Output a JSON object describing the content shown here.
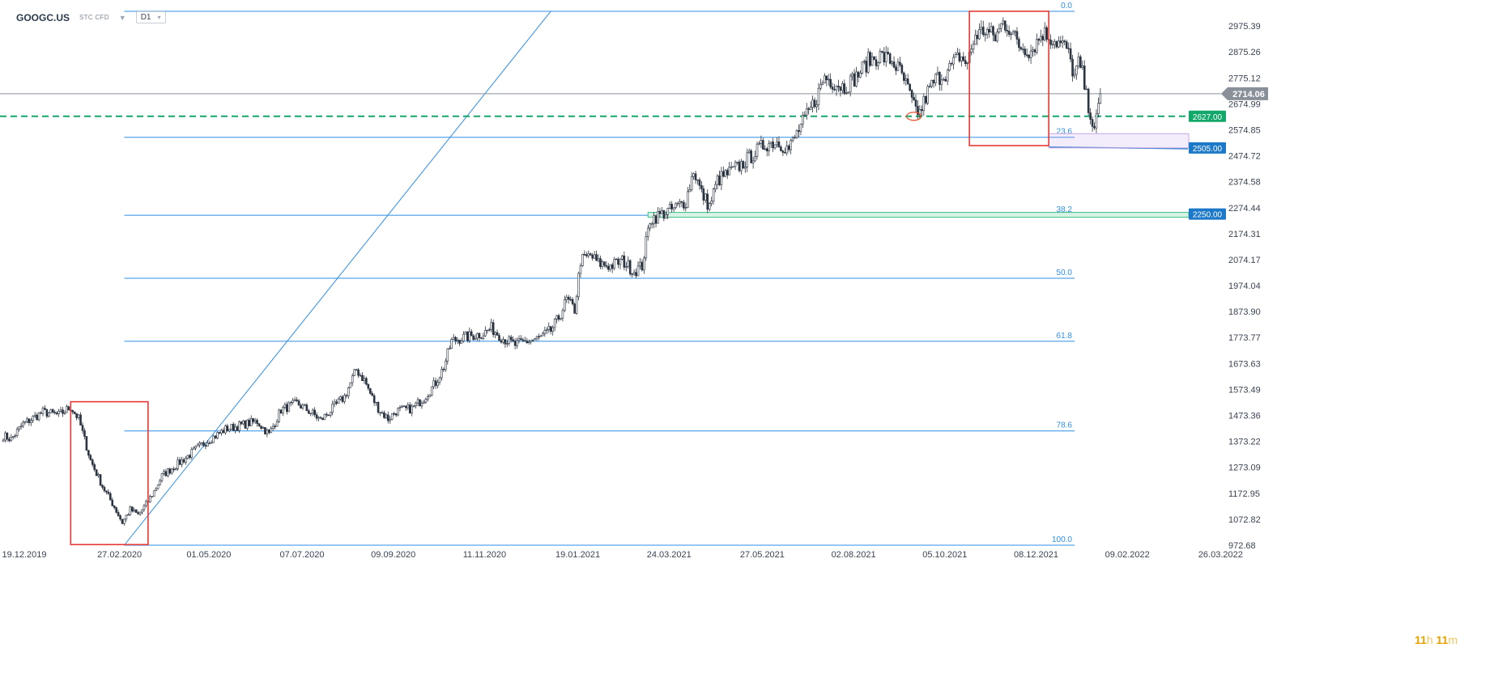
{
  "header": {
    "symbol": "GOOGC.US",
    "instrument_type": "STC CFD",
    "dropdown_icon": "chevron-down-icon",
    "timeframe": "D1"
  },
  "timer": {
    "hours": "11",
    "h": "h",
    "minutes": "11",
    "m": "m"
  },
  "chart_data": {
    "type": "candlestick",
    "symbol": "GOOGC.US",
    "timeframe": "D1",
    "ylim": [
      972.68,
      3075.5
    ],
    "y_ticks": [
      972.68,
      1072.82,
      1172.95,
      1273.09,
      1373.22,
      1473.36,
      1573.49,
      1673.63,
      1773.77,
      1873.9,
      1974.04,
      2074.17,
      2174.31,
      2274.44,
      2374.58,
      2474.72,
      2574.85,
      2674.99,
      2775.12,
      2875.26,
      2975.39
    ],
    "y_tick_labels": [
      "972.68",
      "1072.82",
      "1172.95",
      "1273.09",
      "1373.22",
      "1473.36",
      "1573.49",
      "1673.63",
      "1773.77",
      "1873.90",
      "1974.04",
      "2074.17",
      "2174.31",
      "2274.44",
      "2374.58",
      "2474.72",
      "2574.85",
      "2674.99",
      "2775.12",
      "2875.26",
      "2975.39"
    ],
    "x_tick_labels": [
      "19.12.2019",
      "27.02.2020",
      "01.05.2020",
      "07.07.2020",
      "09.09.2020",
      "11.11.2020",
      "19.01.2021",
      "24.03.2021",
      "27.05.2021",
      "02.08.2021",
      "05.10.2021",
      "08.12.2021",
      "09.02.2022",
      "26.03.2022"
    ],
    "x_tick_index": [
      0,
      48,
      93,
      140,
      186,
      232,
      279,
      325,
      372,
      418,
      464,
      510,
      556,
      603
    ],
    "last_index": 553,
    "current_price": 2714.06,
    "current_price_label": "2714.06",
    "anchors": [
      [
        0,
        1395
      ],
      [
        4,
        1382
      ],
      [
        10,
        1440
      ],
      [
        20,
        1486
      ],
      [
        28,
        1475
      ],
      [
        34,
        1505
      ],
      [
        38,
        1460
      ],
      [
        44,
        1300
      ],
      [
        50,
        1200
      ],
      [
        56,
        1120
      ],
      [
        60,
        1060
      ],
      [
        64,
        1110
      ],
      [
        68,
        1090
      ],
      [
        72,
        1130
      ],
      [
        76,
        1180
      ],
      [
        80,
        1240
      ],
      [
        86,
        1275
      ],
      [
        92,
        1310
      ],
      [
        100,
        1360
      ],
      [
        106,
        1390
      ],
      [
        112,
        1420
      ],
      [
        122,
        1440
      ],
      [
        128,
        1450
      ],
      [
        134,
        1400
      ],
      [
        140,
        1495
      ],
      [
        148,
        1520
      ],
      [
        156,
        1480
      ],
      [
        160,
        1455
      ],
      [
        166,
        1500
      ],
      [
        172,
        1545
      ],
      [
        178,
        1650
      ],
      [
        182,
        1610
      ],
      [
        186,
        1540
      ],
      [
        190,
        1490
      ],
      [
        194,
        1460
      ],
      [
        198,
        1490
      ],
      [
        206,
        1500
      ],
      [
        212,
        1540
      ],
      [
        218,
        1600
      ],
      [
        222,
        1660
      ],
      [
        226,
        1760
      ],
      [
        230,
        1770
      ],
      [
        236,
        1780
      ],
      [
        242,
        1790
      ],
      [
        246,
        1810
      ],
      [
        252,
        1770
      ],
      [
        258,
        1745
      ],
      [
        264,
        1760
      ],
      [
        270,
        1770
      ],
      [
        276,
        1800
      ],
      [
        280,
        1850
      ],
      [
        284,
        1920
      ],
      [
        288,
        1880
      ],
      [
        291,
        2070
      ],
      [
        296,
        2090
      ],
      [
        300,
        2060
      ],
      [
        306,
        2050
      ],
      [
        312,
        2070
      ],
      [
        318,
        2030
      ],
      [
        322,
        2050
      ],
      [
        326,
        2230
      ],
      [
        332,
        2250
      ],
      [
        338,
        2270
      ],
      [
        344,
        2300
      ],
      [
        348,
        2420
      ],
      [
        352,
        2330
      ],
      [
        356,
        2280
      ],
      [
        360,
        2380
      ],
      [
        366,
        2410
      ],
      [
        372,
        2440
      ],
      [
        378,
        2480
      ],
      [
        384,
        2520
      ],
      [
        390,
        2530
      ],
      [
        396,
        2500
      ],
      [
        402,
        2590
      ],
      [
        406,
        2640
      ],
      [
        410,
        2700
      ],
      [
        414,
        2780
      ],
      [
        418,
        2760
      ],
      [
        424,
        2740
      ],
      [
        430,
        2780
      ],
      [
        436,
        2840
      ],
      [
        442,
        2860
      ],
      [
        448,
        2840
      ],
      [
        452,
        2800
      ],
      [
        456,
        2730
      ],
      [
        459,
        2660
      ],
      [
        462,
        2640
      ],
      [
        466,
        2720
      ],
      [
        470,
        2770
      ],
      [
        476,
        2800
      ],
      [
        482,
        2860
      ],
      [
        486,
        2830
      ],
      [
        490,
        2940
      ],
      [
        495,
        2960
      ],
      [
        500,
        2930
      ],
      [
        504,
        2990
      ],
      [
        507,
        2970
      ],
      [
        512,
        2900
      ],
      [
        518,
        2880
      ],
      [
        524,
        2950
      ],
      [
        530,
        2920
      ],
      [
        536,
        2890
      ],
      [
        540,
        2780
      ],
      [
        542,
        2830
      ],
      [
        544,
        2790
      ],
      [
        546,
        2700
      ],
      [
        548,
        2640
      ],
      [
        550,
        2560
      ],
      [
        553,
        2714
      ]
    ],
    "horizontal_levels": [
      {
        "label": "2627.00",
        "value": 2627.0,
        "color": "#12a86a",
        "style": "dashed"
      },
      {
        "label": "2505.00",
        "value": 2505.0,
        "color": "#1c78c8",
        "style": "solid"
      },
      {
        "label": "2250.00",
        "value": 2250.0,
        "color": "#1c78c8",
        "style": "zone"
      }
    ],
    "fibonacci": {
      "color": "#2d8ee6",
      "start_index": 61,
      "end_index": 540,
      "low": 972.68,
      "high": 3032.0,
      "levels": [
        {
          "label": "0.0",
          "ratio": 0.0
        },
        {
          "label": "23.6",
          "ratio": 0.236
        },
        {
          "label": "38.2",
          "ratio": 0.382
        },
        {
          "label": "50.0",
          "ratio": 0.5
        },
        {
          "label": "61.8",
          "ratio": 0.618
        },
        {
          "label": "78.6",
          "ratio": 0.786
        },
        {
          "label": "100.0",
          "ratio": 1.0
        }
      ]
    },
    "trend_line": {
      "from": [
        61,
        972.68
      ],
      "to": [
        276,
        3032.0
      ],
      "color": "#2d8ee6"
    },
    "highlight_boxes": [
      {
        "from_index": 34,
        "to_index": 73,
        "top": 1526,
        "bottom": 975,
        "color": "#e53935"
      },
      {
        "from_index": 487,
        "to_index": 527,
        "top": 3032,
        "bottom": 2514,
        "color": "#e53935"
      }
    ],
    "marker_ellipse": {
      "index": 459,
      "value": 2627.0,
      "color": "#e8532c"
    }
  }
}
